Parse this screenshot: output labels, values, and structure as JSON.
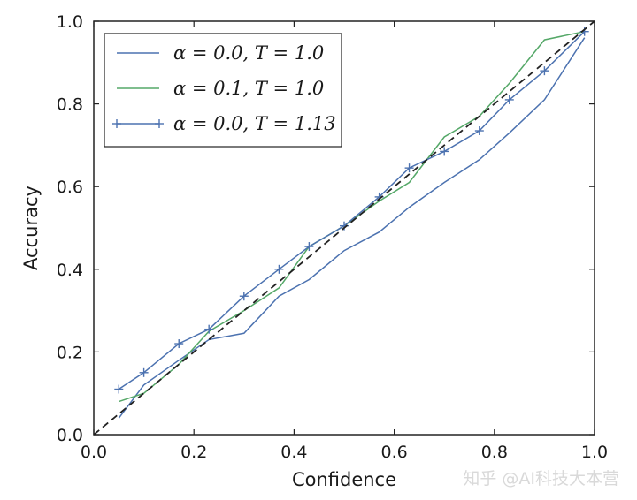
{
  "chart_data": {
    "type": "line",
    "xlabel": "Confidence",
    "ylabel": "Accuracy",
    "xlim": [
      0.0,
      1.0
    ],
    "ylim": [
      0.0,
      1.0
    ],
    "x_ticks": [
      "0.0",
      "0.2",
      "0.4",
      "0.6",
      "0.8",
      "1.0"
    ],
    "y_ticks": [
      "0.0",
      "0.2",
      "0.4",
      "0.6",
      "0.8",
      "1.0"
    ],
    "grid": false,
    "legend_position": "top-left",
    "series": [
      {
        "name": "α = 0.0, T = 1.0",
        "color": "#4c72b0",
        "marker": "none",
        "x": [
          0.05,
          0.1,
          0.17,
          0.23,
          0.3,
          0.37,
          0.43,
          0.5,
          0.57,
          0.63,
          0.7,
          0.77,
          0.83,
          0.9,
          0.98
        ],
        "y": [
          0.04,
          0.12,
          0.18,
          0.23,
          0.245,
          0.335,
          0.375,
          0.445,
          0.49,
          0.55,
          0.61,
          0.665,
          0.73,
          0.81,
          0.96
        ]
      },
      {
        "name": "α = 0.1, T = 1.0",
        "color": "#55a868",
        "marker": "none",
        "x": [
          0.05,
          0.1,
          0.17,
          0.23,
          0.3,
          0.37,
          0.43,
          0.5,
          0.57,
          0.63,
          0.7,
          0.77,
          0.83,
          0.9,
          0.98
        ],
        "y": [
          0.08,
          0.1,
          0.17,
          0.25,
          0.3,
          0.355,
          0.455,
          0.505,
          0.565,
          0.61,
          0.72,
          0.77,
          0.85,
          0.955,
          0.975
        ]
      },
      {
        "name": "α = 0.0, T = 1.13",
        "color": "#4c72b0",
        "marker": "+",
        "x": [
          0.05,
          0.1,
          0.17,
          0.23,
          0.3,
          0.37,
          0.43,
          0.5,
          0.57,
          0.63,
          0.7,
          0.77,
          0.83,
          0.9,
          0.98
        ],
        "y": [
          0.11,
          0.15,
          0.22,
          0.255,
          0.335,
          0.4,
          0.455,
          0.505,
          0.575,
          0.645,
          0.685,
          0.735,
          0.81,
          0.88,
          0.975
        ]
      },
      {
        "name": "",
        "color": "#222222",
        "dash": "dashed",
        "marker": "none",
        "x": [
          0.0,
          1.0
        ],
        "y": [
          0.0,
          1.0
        ]
      }
    ],
    "legend_entries": [
      {
        "label": "α = 0.0, T = 1.0",
        "color": "#4c72b0",
        "marker": "none"
      },
      {
        "label": "α = 0.1, T = 1.0",
        "color": "#55a868",
        "marker": "none"
      },
      {
        "label": "α = 0.0, T = 1.13",
        "color": "#4c72b0",
        "marker": "+"
      }
    ]
  },
  "watermark": "知乎 @AI科技大本营"
}
